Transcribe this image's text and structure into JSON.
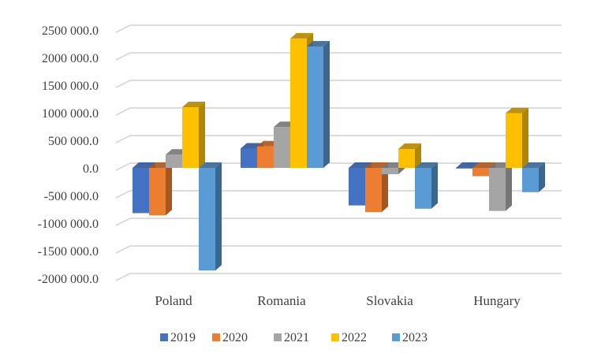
{
  "chart_data": {
    "type": "bar",
    "style": "3d-clustered-column",
    "title": "",
    "xlabel": "",
    "ylabel": "",
    "ylim": [
      -2000000,
      2500000
    ],
    "yticks": [
      2500000,
      2000000,
      1500000,
      1000000,
      500000,
      0,
      -500000,
      -1000000,
      -1500000,
      -2000000
    ],
    "ytick_labels": [
      "2500 000.0",
      "2000 000.0",
      "1500 000.0",
      "1000 000.0",
      "500 000.0",
      "0.0",
      "-500 000.0",
      "-1000 000.0",
      "-1500 000.0",
      "-2000 000.0"
    ],
    "grid": true,
    "legend_position": "bottom",
    "categories": [
      "Poland",
      "Romania",
      "Slovakia",
      "Hungary"
    ],
    "series": [
      {
        "name": "2019",
        "color": "#4472C4",
        "side": "#2F5597",
        "values": [
          -820000,
          350000,
          -680000,
          -10000
        ]
      },
      {
        "name": "2020",
        "color": "#ED7D31",
        "side": "#A9561E",
        "values": [
          -860000,
          390000,
          -800000,
          -150000
        ]
      },
      {
        "name": "2021",
        "color": "#A5A5A5",
        "side": "#767676",
        "values": [
          240000,
          740000,
          -115000,
          -780000
        ]
      },
      {
        "name": "2022",
        "color": "#FFC000",
        "side": "#B08600",
        "values": [
          1100000,
          2345000,
          343000,
          990000
        ]
      },
      {
        "name": "2023",
        "color": "#5B9BD5",
        "side": "#3A6690",
        "values": [
          -1860000,
          2200000,
          -740000,
          -440000
        ]
      }
    ]
  }
}
